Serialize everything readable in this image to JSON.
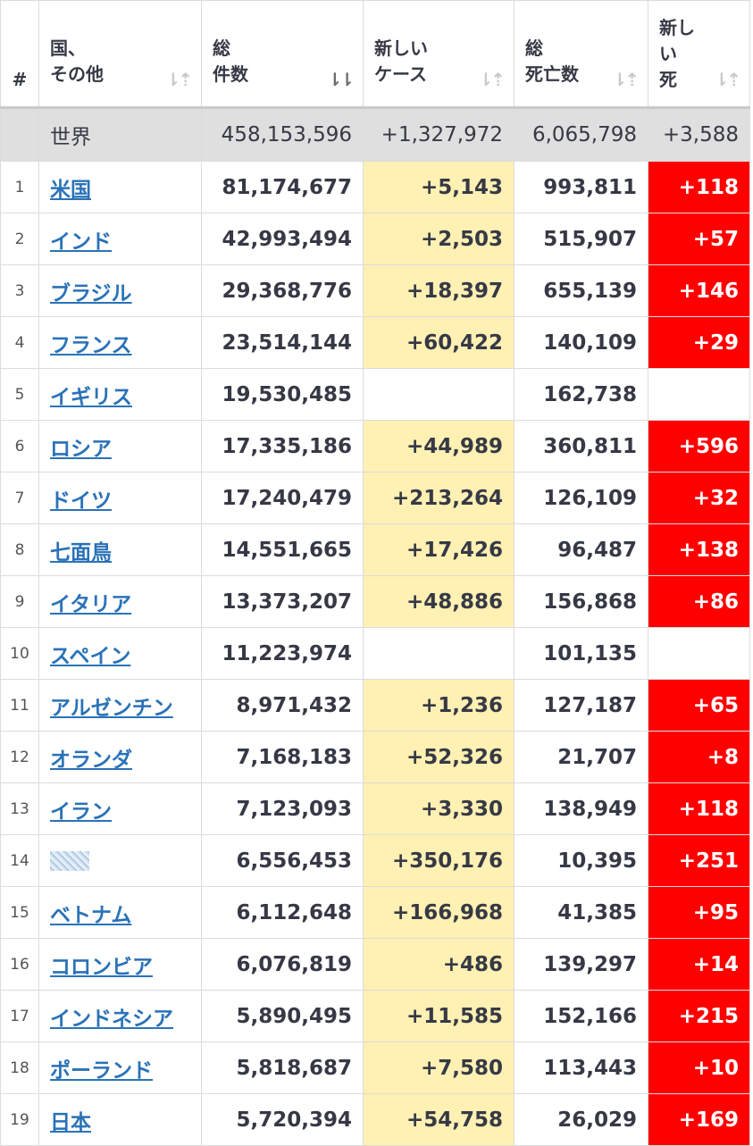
{
  "header": {
    "rank": "#",
    "country_line1": "国、",
    "country_line2": "その他",
    "total_line1": "総",
    "total_line2": "件数",
    "new_cases_line1": "新しい",
    "new_cases_line2": "ケース",
    "deaths_line1": "総",
    "deaths_line2": "死亡数",
    "new_deaths_line1": "新し",
    "new_deaths_line2": "い",
    "new_deaths_line3": "死",
    "sort_icon": "⇂⇡",
    "sort_icon_active": "⇂⇂"
  },
  "world": {
    "label": "世界",
    "total_cases": "458,153,596",
    "new_cases": "+1,327,972",
    "total_deaths": "6,065,798",
    "new_deaths": "+3,588"
  },
  "rows": [
    {
      "rank": "1",
      "country": "米国",
      "total": "81,174,677",
      "new_cases": "+5,143",
      "deaths": "993,811",
      "new_deaths": "+118"
    },
    {
      "rank": "2",
      "country": "インド",
      "total": "42,993,494",
      "new_cases": "+2,503",
      "deaths": "515,907",
      "new_deaths": "+57"
    },
    {
      "rank": "3",
      "country": "ブラジル",
      "total": "29,368,776",
      "new_cases": "+18,397",
      "deaths": "655,139",
      "new_deaths": "+146"
    },
    {
      "rank": "4",
      "country": "フランス",
      "total": "23,514,144",
      "new_cases": "+60,422",
      "deaths": "140,109",
      "new_deaths": "+29"
    },
    {
      "rank": "5",
      "country": "イギリス",
      "total": "19,530,485",
      "new_cases": "",
      "deaths": "162,738",
      "new_deaths": ""
    },
    {
      "rank": "6",
      "country": "ロシア",
      "total": "17,335,186",
      "new_cases": "+44,989",
      "deaths": "360,811",
      "new_deaths": "+596"
    },
    {
      "rank": "7",
      "country": "ドイツ",
      "total": "17,240,479",
      "new_cases": "+213,264",
      "deaths": "126,109",
      "new_deaths": "+32"
    },
    {
      "rank": "8",
      "country": "七面鳥",
      "total": "14,551,665",
      "new_cases": "+17,426",
      "deaths": "96,487",
      "new_deaths": "+138"
    },
    {
      "rank": "9",
      "country": "イタリア",
      "total": "13,373,207",
      "new_cases": "+48,886",
      "deaths": "156,868",
      "new_deaths": "+86"
    },
    {
      "rank": "10",
      "country": "スペイン",
      "total": "11,223,974",
      "new_cases": "",
      "deaths": "101,135",
      "new_deaths": ""
    },
    {
      "rank": "11",
      "country": "アルゼンチン",
      "total": "8,971,432",
      "new_cases": "+1,236",
      "deaths": "127,187",
      "new_deaths": "+65"
    },
    {
      "rank": "12",
      "country": "オランダ",
      "total": "7,168,183",
      "new_cases": "+52,326",
      "deaths": "21,707",
      "new_deaths": "+8"
    },
    {
      "rank": "13",
      "country": "イラン",
      "total": "7,123,093",
      "new_cases": "+3,330",
      "deaths": "138,949",
      "new_deaths": "+118"
    },
    {
      "rank": "14",
      "country": "",
      "total": "6,556,453",
      "new_cases": "+350,176",
      "deaths": "10,395",
      "new_deaths": "+251",
      "blurred": true
    },
    {
      "rank": "15",
      "country": "ベトナム",
      "total": "6,112,648",
      "new_cases": "+166,968",
      "deaths": "41,385",
      "new_deaths": "+95"
    },
    {
      "rank": "16",
      "country": "コロンビア",
      "total": "6,076,819",
      "new_cases": "+486",
      "deaths": "139,297",
      "new_deaths": "+14"
    },
    {
      "rank": "17",
      "country": "インドネシア",
      "total": "5,890,495",
      "new_cases": "+11,585",
      "deaths": "152,166",
      "new_deaths": "+215"
    },
    {
      "rank": "18",
      "country": "ポーランド",
      "total": "5,818,687",
      "new_cases": "+7,580",
      "deaths": "113,443",
      "new_deaths": "+10"
    },
    {
      "rank": "19",
      "country": "日本",
      "total": "5,720,394",
      "new_cases": "+54,758",
      "deaths": "26,029",
      "new_deaths": "+169"
    }
  ],
  "colors": {
    "new_cases_highlight": "#fff0b3",
    "new_deaths_highlight": "#ff0000",
    "link": "#2a72b7",
    "world_row": "#dfdfdf"
  }
}
